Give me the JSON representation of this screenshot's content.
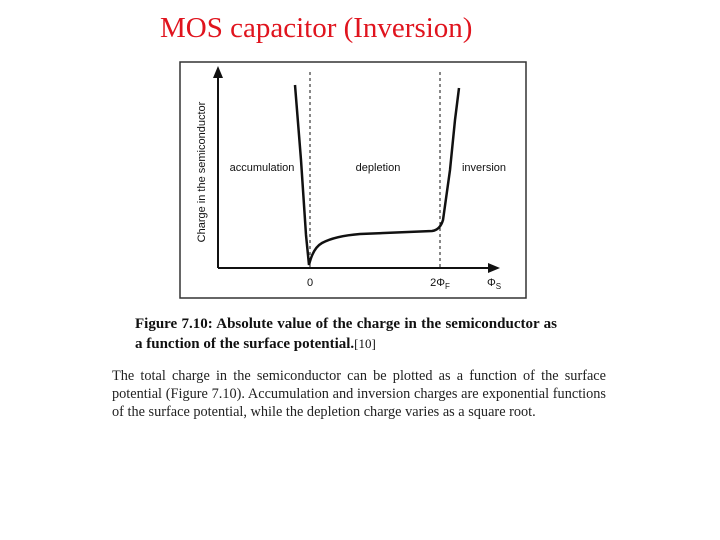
{
  "title": "MOS capacitor (Inversion)",
  "figure": {
    "y_axis_label": "Charge in the semiconductor",
    "regions": [
      "accumulation",
      "depletion",
      "inversion"
    ],
    "x_labels": [
      {
        "main": "0"
      },
      {
        "main": "2Φ",
        "sub": "F"
      },
      {
        "main": "Φ",
        "sub": "S"
      }
    ]
  },
  "caption": {
    "label": "Figure 7.10",
    "text": ": Absolute value of the charge in the semiconductor as a function of the surface potential.",
    "ref": "[10]"
  },
  "paragraph": "The total charge in the semiconductor can be plotted as a function of the surface potential (Figure 7.10). Accumulation and inversion charges are exponential functions of the surface potential, while the depletion charge varies as a square root."
}
